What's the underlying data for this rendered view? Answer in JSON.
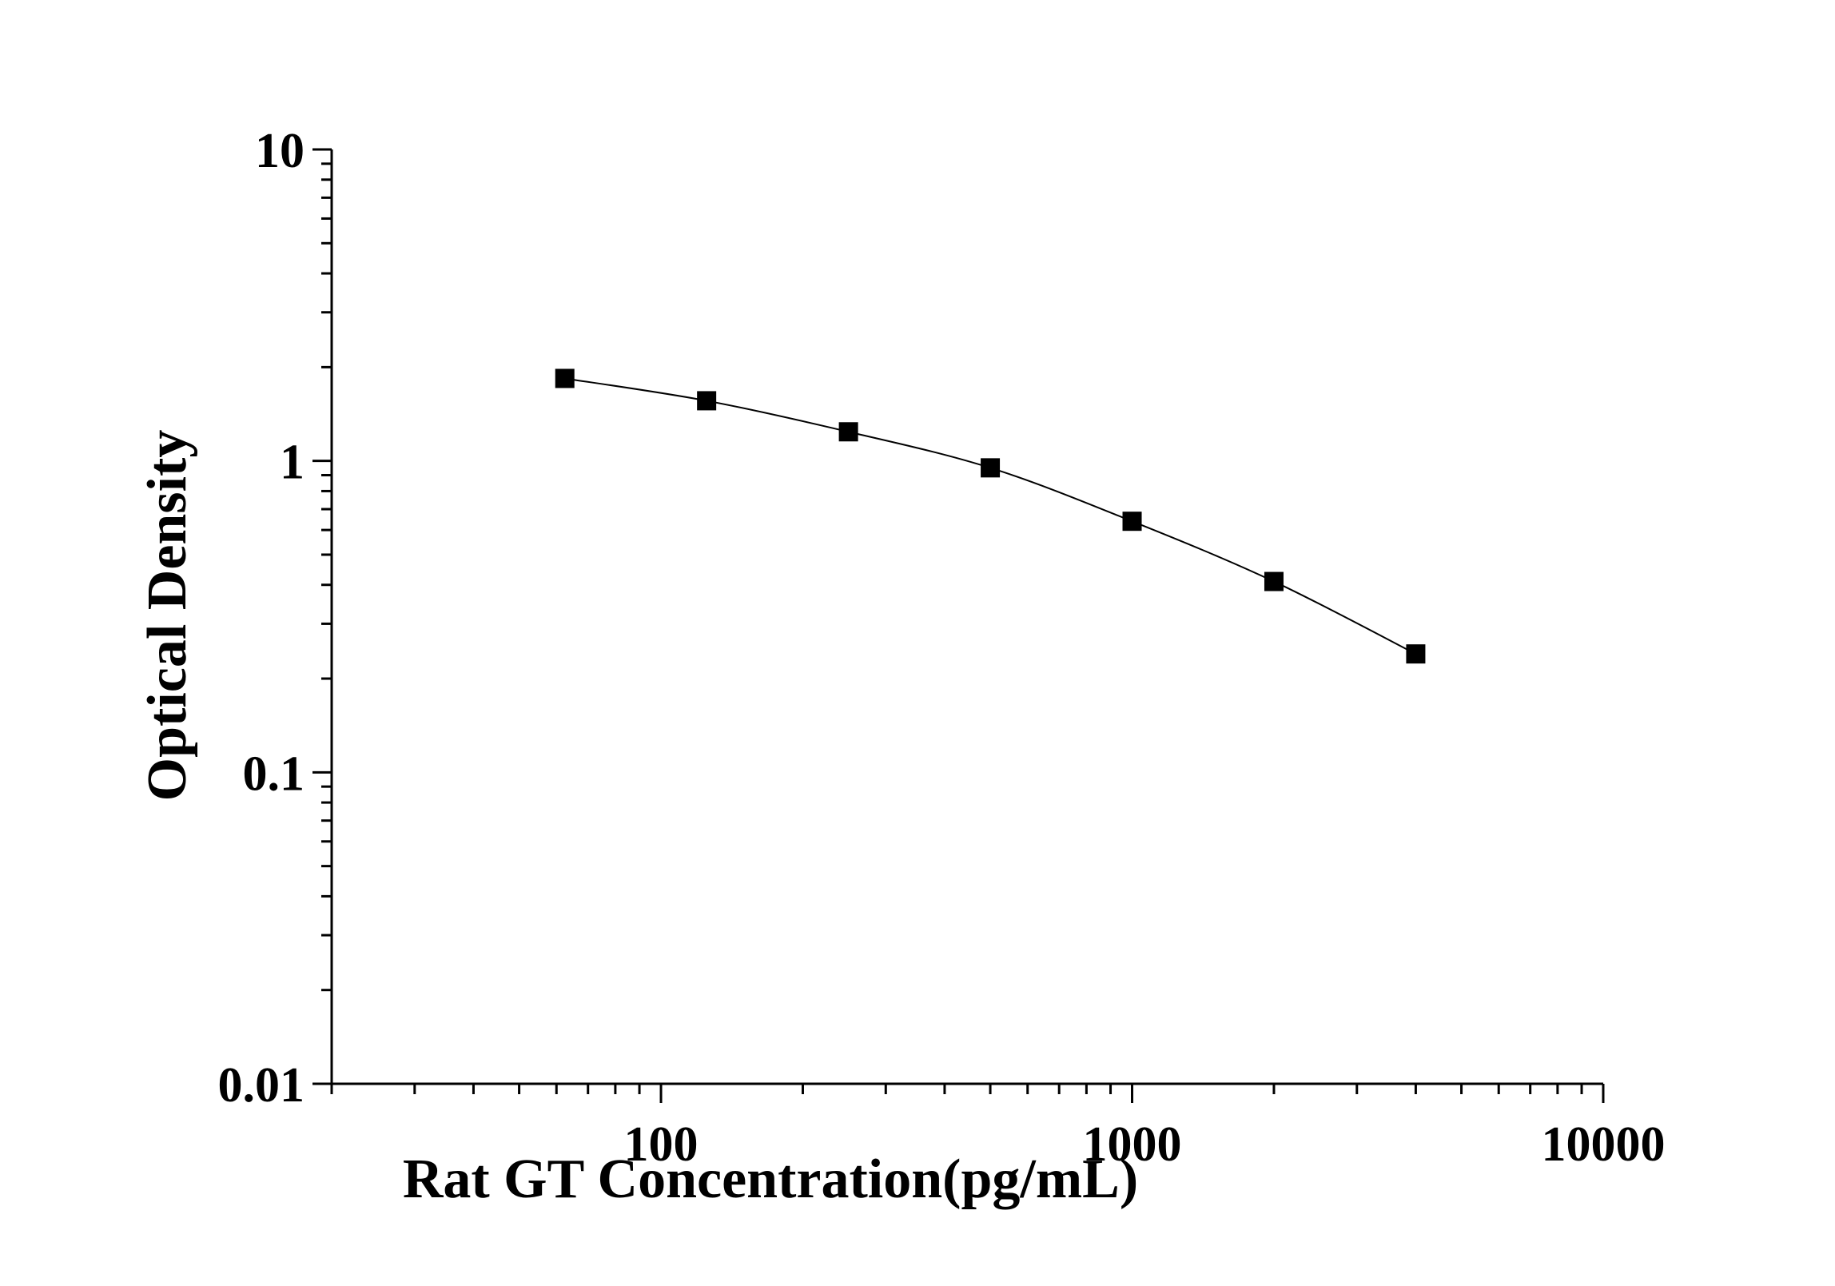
{
  "chart_data": {
    "type": "scatter",
    "title": "",
    "xlabel": "Rat GT Concentration(pg/mL)",
    "ylabel": "Optical Density",
    "x_scale": "log",
    "y_scale": "log",
    "xlim": [
      20,
      10000
    ],
    "ylim": [
      0.01,
      10
    ],
    "x_tick_labels": [
      "100",
      "1000",
      "10000"
    ],
    "y_tick_labels": [
      "0.01",
      "0.1",
      "1",
      "10"
    ],
    "grid": false,
    "legend": "none",
    "marker": "square",
    "color": "#000000",
    "series": [
      {
        "x": [
          62.5,
          125,
          250,
          500,
          1000,
          2000,
          4000
        ],
        "y": [
          1.84,
          1.56,
          1.24,
          0.95,
          0.64,
          0.41,
          0.24
        ]
      }
    ]
  }
}
